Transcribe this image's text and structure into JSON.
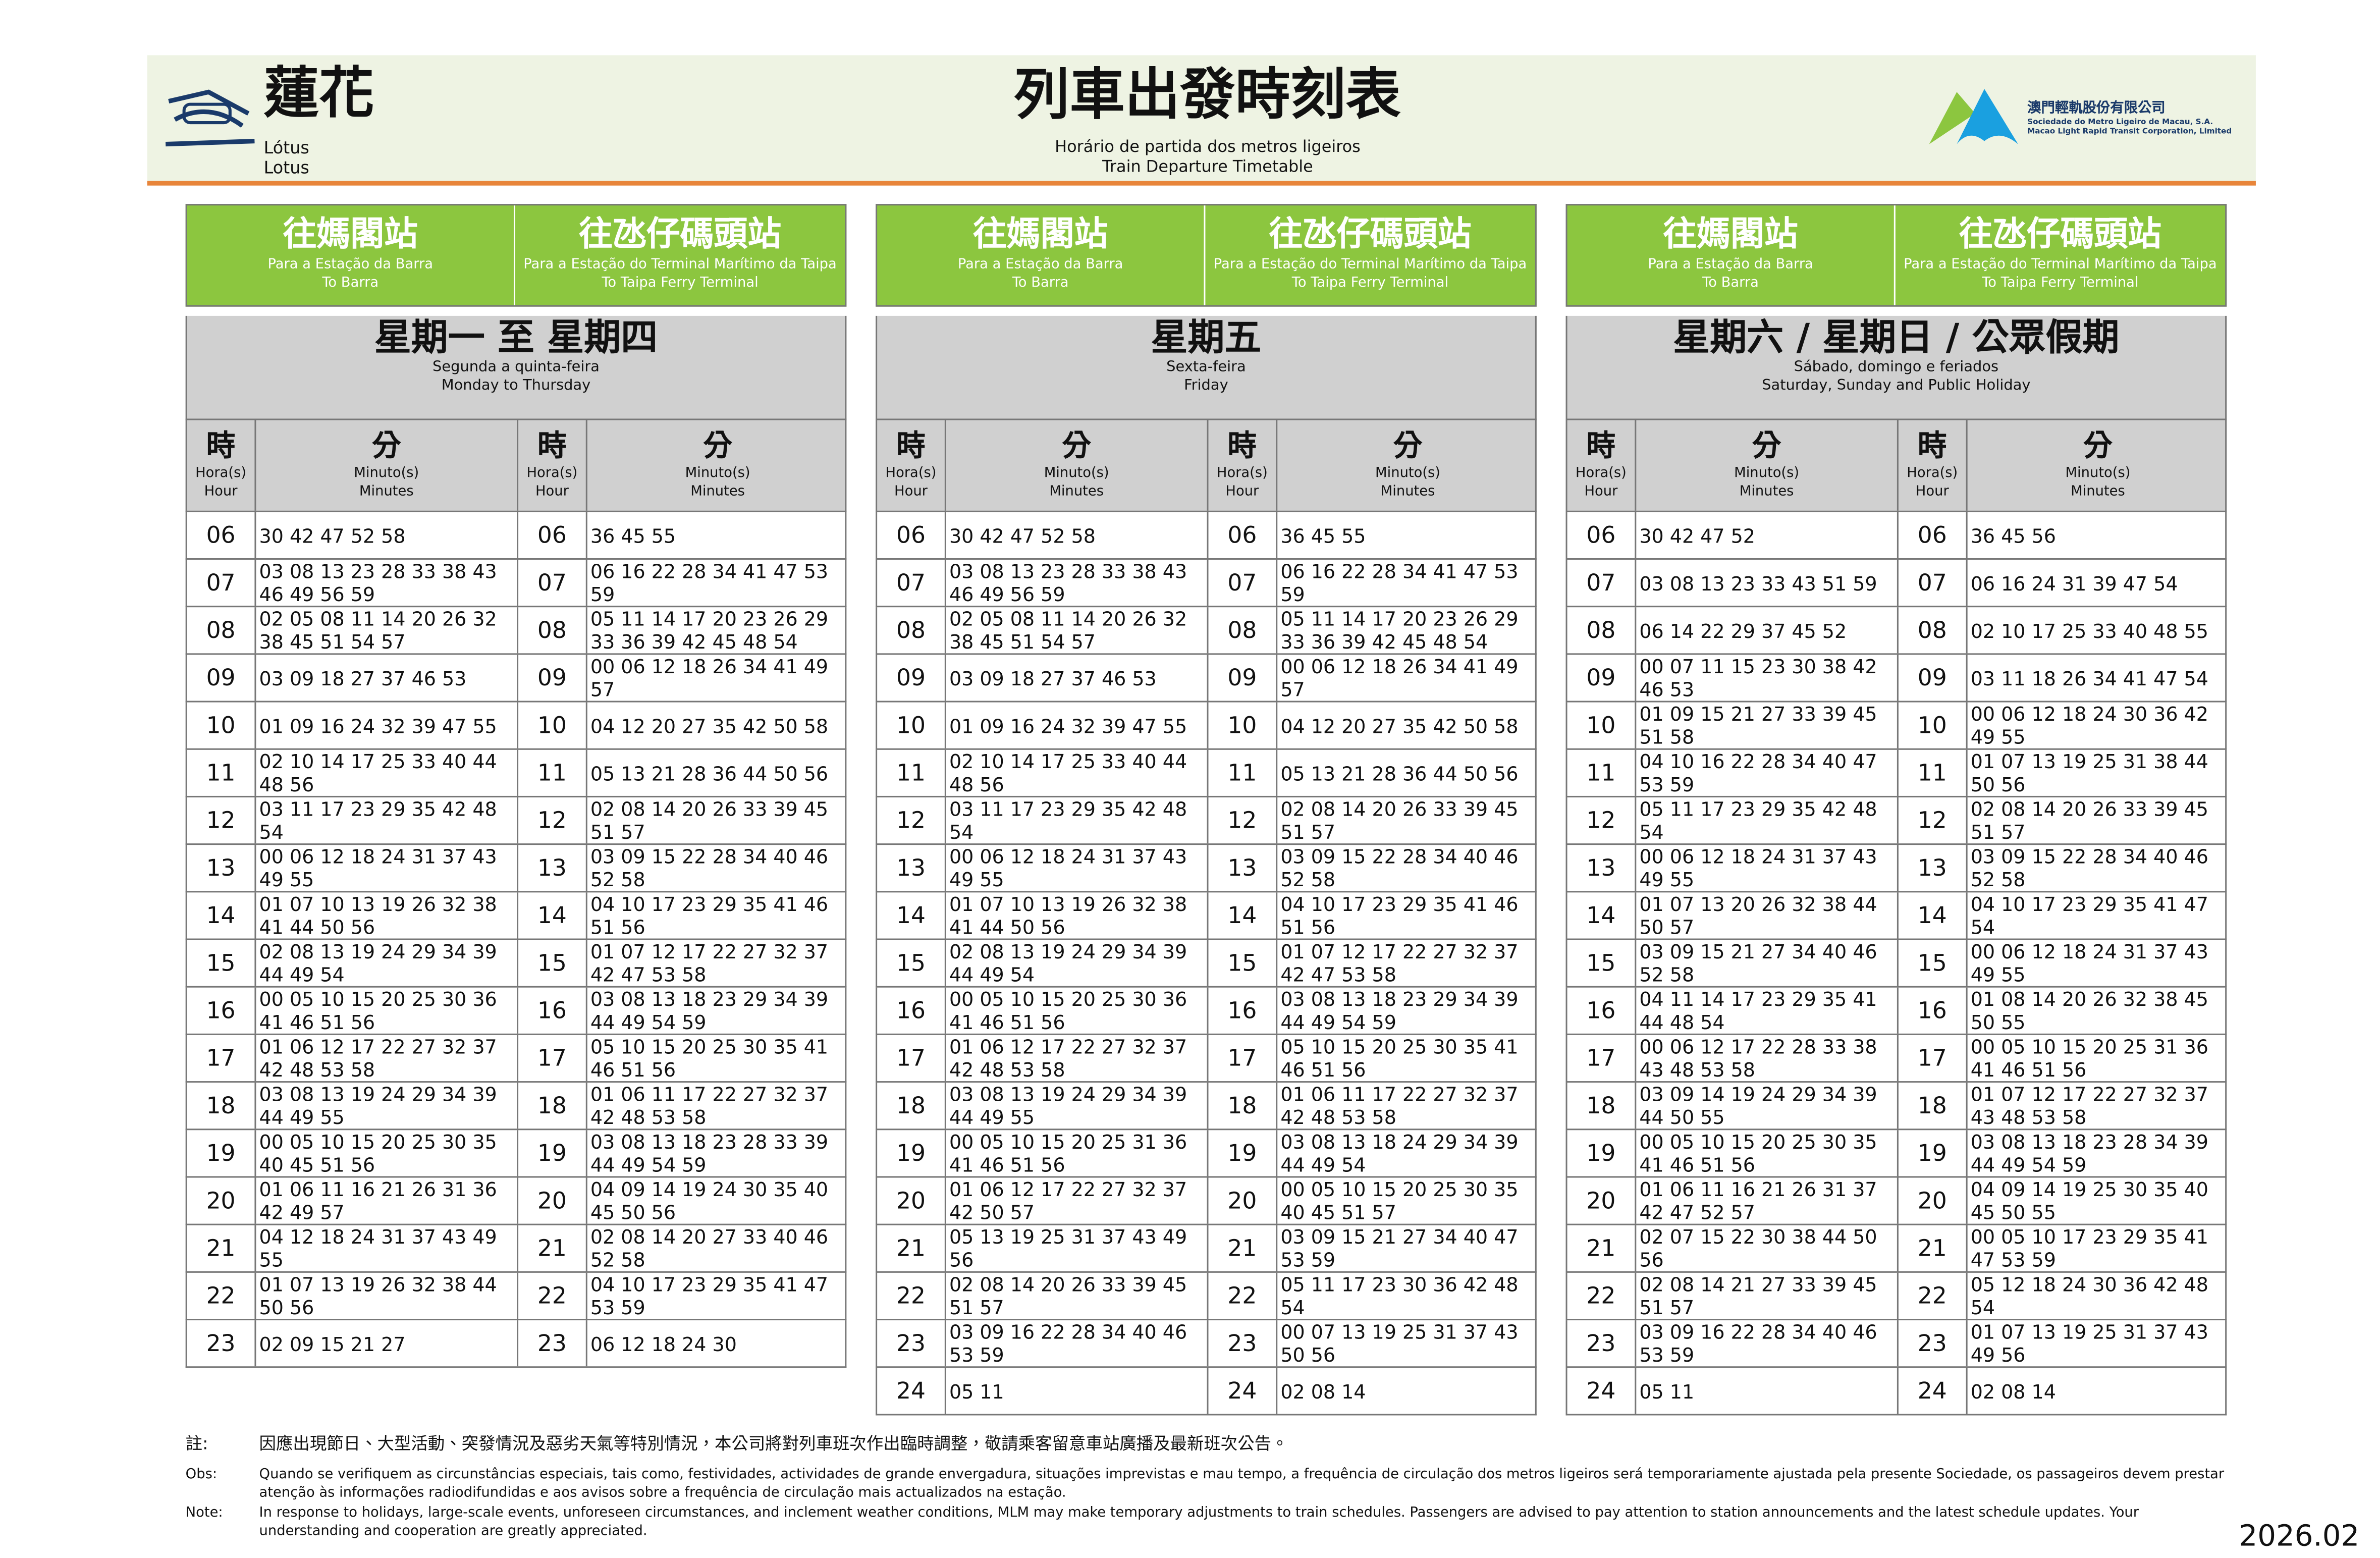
{
  "header": {
    "name_zh": "蓮花",
    "name_pt": "Lótus",
    "name_en": "Lotus",
    "title_zh": "列車出發時刻表",
    "title_pt": "Horário de partida dos metros ligeiros",
    "title_en": "Train Departure Timetable",
    "company_zh": "澳門輕軌股份有限公司",
    "company_pt": "Sociedade do Metro Ligeiro de Macau, S.A.",
    "company_en": "Macao Light Rapid Transit Corporation, Limited"
  },
  "directions": [
    {
      "zh": "往媽閣站",
      "pt": "Para a Estação da Barra",
      "en": "To Barra"
    },
    {
      "zh": "往氹仔碼頭站",
      "pt": "Para a Estação do Terminal Marítimo da Taipa",
      "en": "To Taipa Ferry Terminal"
    }
  ],
  "columns": {
    "hour_zh": "時",
    "hour_pt": "Hora(s)",
    "hour_en": "Hour",
    "minute_zh": "分",
    "minute_pt": "Minuto(s)",
    "minute_en": "Minutes"
  },
  "panels": [
    {
      "day_zh": "星期一 至 星期四",
      "day_pt": "Segunda a quinta-feira",
      "day_en": "Monday to Thursday",
      "rows": [
        [
          "06",
          "30 42 47 52 58",
          "36 45 55"
        ],
        [
          "07",
          "03 08 13 23 28 33 38 43 46 49 56 59",
          "06 16 22 28 34 41 47 53 59"
        ],
        [
          "08",
          "02 05 08 11 14 20 26 32 38 45 51 54 57",
          "05 11 14 17 20 23 26 29 33 36 39 42 45 48 54"
        ],
        [
          "09",
          "03 09 18 27 37 46 53",
          "00 06 12 18 26 34 41 49 57"
        ],
        [
          "10",
          "01 09 16 24 32 39 47 55",
          "04 12 20 27 35 42 50 58"
        ],
        [
          "11",
          "02 10 14 17 25 33 40 44 48 56",
          "05 13 21 28 36 44 50 56"
        ],
        [
          "12",
          "03 11 17 23 29 35 42 48 54",
          "02 08 14 20 26 33 39 45 51 57"
        ],
        [
          "13",
          "00 06 12 18 24 31 37 43 49 55",
          "03 09 15 22 28 34 40 46 52 58"
        ],
        [
          "14",
          "01 07 10 13 19 26 32 38 41 44 50 56",
          "04 10 17 23 29 35 41 46 51 56"
        ],
        [
          "15",
          "02 08 13 19 24 29 34 39 44 49 54",
          "01 07 12 17 22 27 32 37 42 47 53 58"
        ],
        [
          "16",
          "00 05 10 15 20 25 30 36 41 46 51 56",
          "03 08 13 18 23 29 34 39 44 49 54 59"
        ],
        [
          "17",
          "01 06 12 17 22 27 32 37 42 48 53 58",
          "05 10 15 20 25 30 35 41 46 51 56"
        ],
        [
          "18",
          "03 08 13 19 24 29 34 39 44 49 55",
          "01 06 11 17 22 27 32 37 42 48 53 58"
        ],
        [
          "19",
          "00 05 10 15 20 25 30 35 40 45 51 56",
          "03 08 13 18 23 28 33 39 44 49 54 59"
        ],
        [
          "20",
          "01 06 11 16 21 26 31 36 42 49 57",
          "04 09 14 19 24 30 35 40 45 50 56"
        ],
        [
          "21",
          "04 12 18 24 31 37 43 49 55",
          "02 08 14 20 27 33 40 46 52 58"
        ],
        [
          "22",
          "01 07 13 19 26 32 38 44 50 56",
          "04 10 17 23 29 35 41 47 53 59"
        ],
        [
          "23",
          "02 09 15 21 27",
          "06 12 18 24 30"
        ]
      ]
    },
    {
      "day_zh": "星期五",
      "day_pt": "Sexta-feira",
      "day_en": "Friday",
      "rows": [
        [
          "06",
          "30 42 47 52 58",
          "36 45 55"
        ],
        [
          "07",
          "03 08 13 23 28 33 38 43 46 49 56 59",
          "06 16 22 28 34 41 47 53 59"
        ],
        [
          "08",
          "02 05 08 11 14 20 26 32 38 45 51 54 57",
          "05 11 14 17 20 23 26 29 33 36 39 42 45 48 54"
        ],
        [
          "09",
          "03 09 18 27 37 46 53",
          "00 06 12 18 26 34 41 49 57"
        ],
        [
          "10",
          "01 09 16 24 32 39 47 55",
          "04 12 20 27 35 42 50 58"
        ],
        [
          "11",
          "02 10 14 17 25 33 40 44 48 56",
          "05 13 21 28 36 44 50 56"
        ],
        [
          "12",
          "03 11 17 23 29 35 42 48 54",
          "02 08 14 20 26 33 39 45 51 57"
        ],
        [
          "13",
          "00 06 12 18 24 31 37 43 49 55",
          "03 09 15 22 28 34 40 46 52 58"
        ],
        [
          "14",
          "01 07 10 13 19 26 32 38 41 44 50 56",
          "04 10 17 23 29 35 41 46 51 56"
        ],
        [
          "15",
          "02 08 13 19 24 29 34 39 44 49 54",
          "01 07 12 17 22 27 32 37 42 47 53 58"
        ],
        [
          "16",
          "00 05 10 15 20 25 30 36 41 46 51 56",
          "03 08 13 18 23 29 34 39 44 49 54 59"
        ],
        [
          "17",
          "01 06 12 17 22 27 32 37 42 48 53 58",
          "05 10 15 20 25 30 35 41 46 51 56"
        ],
        [
          "18",
          "03 08 13 19 24 29 34 39 44 49 55",
          "01 06 11 17 22 27 32 37 42 48 53 58"
        ],
        [
          "19",
          "00 05 10 15 20 25 31 36 41 46 51 56",
          "03 08 13 18 24 29 34 39 44 49 54"
        ],
        [
          "20",
          "01 06 12 17 22 27 32 37 42 50 57",
          "00 05 10 15 20 25 30 35 40 45 51 57"
        ],
        [
          "21",
          "05 13 19 25 31 37 43 49 56",
          "03 09 15 21 27 34 40 47 53 59"
        ],
        [
          "22",
          "02 08 14 20 26 33 39 45 51 57",
          "05 11 17 23 30 36 42 48 54"
        ],
        [
          "23",
          "03 09 16 22 28 34 40 46 53 59",
          "00 07 13 19 25 31 37 43 50 56"
        ],
        [
          "24",
          "05 11",
          "02 08 14"
        ]
      ]
    },
    {
      "day_zh": "星期六 / 星期日 / 公眾假期",
      "day_pt": "Sábado, domingo e feriados",
      "day_en": "Saturday, Sunday and Public Holiday",
      "rows": [
        [
          "06",
          "30 42 47 52",
          "36 45 56"
        ],
        [
          "07",
          "03 08 13 23 33 43 51 59",
          "06 16 24 31 39 47 54"
        ],
        [
          "08",
          "06 14 22 29 37 45 52",
          "02 10 17 25 33 40 48 55"
        ],
        [
          "09",
          "00 07 11 15 23 30 38 42 46 53",
          "03 11 18 26 34 41 47 54"
        ],
        [
          "10",
          "01 09 15 21 27 33 39 45 51 58",
          "00 06 12 18 24 30 36 42 49 55"
        ],
        [
          "11",
          "04 10 16 22 28 34 40 47 53 59",
          "01 07 13 19 25 31 38 44 50 56"
        ],
        [
          "12",
          "05 11 17 23 29 35 42 48 54",
          "02 08 14 20 26 33 39 45 51 57"
        ],
        [
          "13",
          "00 06 12 18 24 31 37 43 49 55",
          "03 09 15 22 28 34 40 46 52 58"
        ],
        [
          "14",
          "01 07 13 20 26 32 38 44 50 57",
          "04 10 17 23 29 35 41 47 54"
        ],
        [
          "15",
          "03 09 15 21 27 34 40 46 52 58",
          "00 06 12 18 24 31 37 43 49 55"
        ],
        [
          "16",
          "04 11 14 17 23 29 35 41 44 48 54",
          "01 08 14 20 26 32 38 45 50 55"
        ],
        [
          "17",
          "00 06 12 17 22 28 33 38 43 48 53 58",
          "00 05 10 15 20 25 31 36 41 46 51 56"
        ],
        [
          "18",
          "03 09 14 19 24 29 34 39 44 50 55",
          "01 07 12 17 22 27 32 37 43 48 53 58"
        ],
        [
          "19",
          "00 05 10 15 20 25 30 35 41 46 51 56",
          "03 08 13 18 23 28 34 39 44 49 54 59"
        ],
        [
          "20",
          "01 06 11 16 21 26 31 37 42 47 52 57",
          "04 09 14 19 25 30 35 40 45 50 55"
        ],
        [
          "21",
          "02 07 15 22 30 38 44 50 56",
          "00 05 10 17 23 29 35 41 47 53 59"
        ],
        [
          "22",
          "02 08 14 21 27 33 39 45 51 57",
          "05 12 18 24 30 36 42 48 54"
        ],
        [
          "23",
          "03 09 16 22 28 34 40 46 53 59",
          "01 07 13 19 25 31 37 43 49 56"
        ],
        [
          "24",
          "05 11",
          "02 08 14"
        ]
      ]
    }
  ],
  "notes": [
    {
      "label": "註:",
      "text": "因應出現節日、大型活動、突發情況及惡劣天氣等特別情況，本公司將對列車班次作出臨時調整，敬請乘客留意車站廣播及最新班次公告。"
    },
    {
      "label": "Obs:",
      "text": "Quando se verifiquem as circunstâncias especiais, tais como, festividades, actividades de grande envergadura, situações imprevistas  e mau tempo, a frequência de circulação dos metros ligeiros será temporariamente ajustada pela presente Sociedade, os passageiros devem prestar atenção às informações radiodifundidas e aos avisos sobre a frequência de circulação mais actualizados na estação."
    },
    {
      "label": "Note:",
      "text": "In response to holidays, large-scale events, unforeseen circumstances, and inclement weather conditions, MLM may make temporary adjustments to train schedules. Passengers are advised to pay attention to station announcements and the latest schedule updates. Your understanding and cooperation are greatly appreciated."
    }
  ],
  "version": "2026.02"
}
